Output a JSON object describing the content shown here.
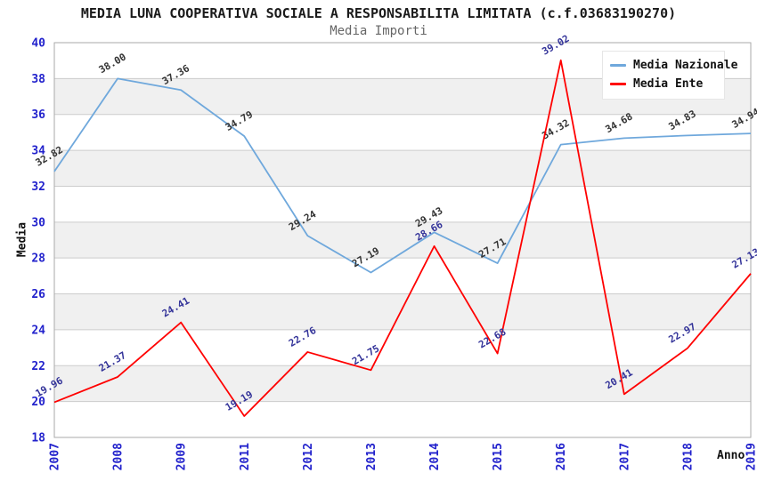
{
  "chart_data": {
    "type": "line",
    "title": "MEDIA LUNA COOPERATIVA SOCIALE A RESPONSABILITA LIMITATA (c.f.03683190270)",
    "subtitle": "Media Importi",
    "xlabel": "Anno",
    "ylabel": "Media",
    "categories": [
      "2007",
      "2008",
      "2009",
      "2011",
      "2012",
      "2013",
      "2014",
      "2015",
      "2016",
      "2017",
      "2018",
      "2019"
    ],
    "series": [
      {
        "name": "Media Nazionale",
        "color": "#6fa8dc",
        "label_color": "#333333",
        "values": [
          32.82,
          38.0,
          37.36,
          34.79,
          29.24,
          27.19,
          29.43,
          27.71,
          34.32,
          34.68,
          34.83,
          34.94
        ]
      },
      {
        "name": "Media Ente",
        "color": "#ff0000",
        "label_color": "#333399",
        "values": [
          19.96,
          21.37,
          24.41,
          19.19,
          22.76,
          21.75,
          28.66,
          22.68,
          39.02,
          20.41,
          22.97,
          27.13
        ]
      }
    ],
    "ylim": [
      18,
      40
    ],
    "ytick_step": 2,
    "grid": true,
    "legend_position": "top-right",
    "colors": {
      "axis_tick_label": "#2222cc",
      "gridline": "#cccccc",
      "plot_border": "#aaaaaa",
      "band_even": "#ffffff",
      "band_odd": "#f0f0f0",
      "title": "#1a1a1a",
      "subtitle": "#666666"
    }
  }
}
